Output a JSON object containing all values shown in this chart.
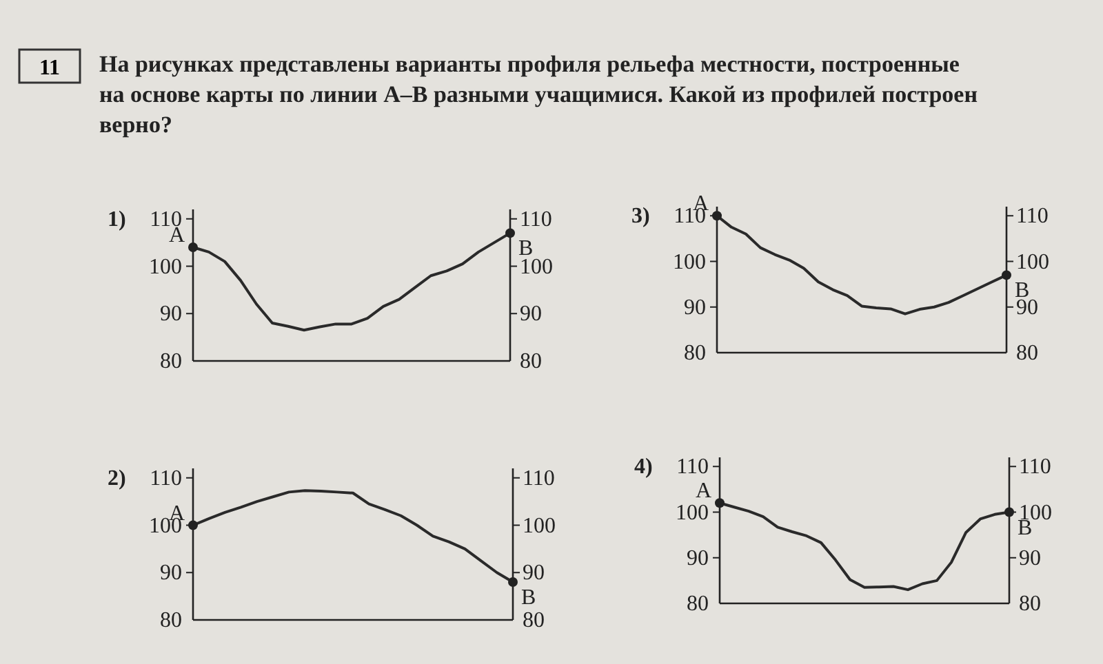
{
  "chart_data": [
    {
      "type": "other",
      "title": "11",
      "subtitle": "На рисунках представлены варианты профиля рельефа местности, построенные на основе карты по линии А–В разными учащимися. Какой из профилей построен верно?"
    },
    {
      "type": "line",
      "title": "1)",
      "categories": [
        null,
        null,
        null,
        null,
        null,
        null,
        null,
        null,
        null,
        null,
        null,
        null,
        null,
        null,
        null,
        null,
        null,
        null,
        null,
        null,
        null
      ],
      "series": [
        {
          "color": "#2a2a2a",
          "values": [
            104,
            103,
            101,
            97,
            92,
            88,
            87.3,
            86.5,
            87.2,
            87.8,
            87.8,
            89,
            91.5,
            93,
            95.5,
            98,
            99,
            100.5,
            103,
            105,
            107
          ]
        }
      ],
      "ylim": [
        80,
        112
      ],
      "yticks": [
        80,
        90,
        100,
        110
      ],
      "y2lim": [
        80,
        112
      ],
      "y2ticks": [
        80,
        90,
        100,
        110
      ],
      "tick_labels": "y",
      "annotations": [
        "A",
        "B"
      ]
    },
    {
      "type": "line",
      "title": "3)",
      "categories": [
        null,
        null,
        null,
        null,
        null,
        null,
        null,
        null,
        null,
        null,
        null,
        null,
        null,
        null,
        null,
        null,
        null,
        null,
        null,
        null,
        null
      ],
      "series": [
        {
          "color": "#2a2a2a",
          "values": [
            110,
            107.5,
            106,
            103,
            101.5,
            100.3,
            98.5,
            95.5,
            93.8,
            92.5,
            90.2,
            89.8,
            89.6,
            88.5,
            89.5,
            90,
            91,
            92.5,
            94,
            95.5,
            97
          ]
        }
      ],
      "ylim": [
        80,
        112
      ],
      "yticks": [
        80,
        90,
        100,
        110
      ],
      "y2lim": [
        80,
        112
      ],
      "y2ticks": [
        80,
        90,
        100,
        110
      ],
      "tick_labels": "y",
      "annotations": [
        "A",
        "B"
      ]
    },
    {
      "type": "line",
      "title": "2)",
      "categories": [
        null,
        null,
        null,
        null,
        null,
        null,
        null,
        null,
        null,
        null,
        null,
        null,
        null,
        null,
        null,
        null,
        null,
        null,
        null,
        null,
        null
      ],
      "series": [
        {
          "color": "#2a2a2a",
          "values": [
            100,
            101.4,
            102.7,
            103.8,
            105,
            106,
            107,
            107.3,
            107.2,
            107,
            106.8,
            104.5,
            103.3,
            102,
            100,
            97.7,
            96.5,
            95,
            92.5,
            90,
            88
          ]
        }
      ],
      "ylim": [
        80,
        112
      ],
      "yticks": [
        80,
        90,
        100,
        110
      ],
      "y2lim": [
        80,
        112
      ],
      "y2ticks": [
        80,
        90,
        100,
        110
      ],
      "tick_labels": "y",
      "annotations": [
        "A",
        "B"
      ]
    },
    {
      "type": "line",
      "title": "4)",
      "categories": [
        null,
        null,
        null,
        null,
        null,
        null,
        null,
        null,
        null,
        null,
        null,
        null,
        null,
        null,
        null,
        null,
        null,
        null,
        null,
        null,
        null
      ],
      "series": [
        {
          "color": "#2a2a2a",
          "values": [
            102,
            101.1,
            100.2,
            99,
            96.7,
            95.7,
            94.8,
            93.3,
            89.5,
            85.2,
            83.5,
            83.6,
            83.7,
            83,
            84.3,
            85,
            89,
            95.5,
            98.5,
            99.5,
            100
          ]
        }
      ],
      "ylim": [
        80,
        112
      ],
      "yticks": [
        80,
        90,
        100,
        110
      ],
      "y2lim": [
        80,
        112
      ],
      "y2ticks": [
        80,
        90,
        100,
        110
      ],
      "tick_labels": "y",
      "annotations": [
        "A",
        "B"
      ]
    }
  ]
}
